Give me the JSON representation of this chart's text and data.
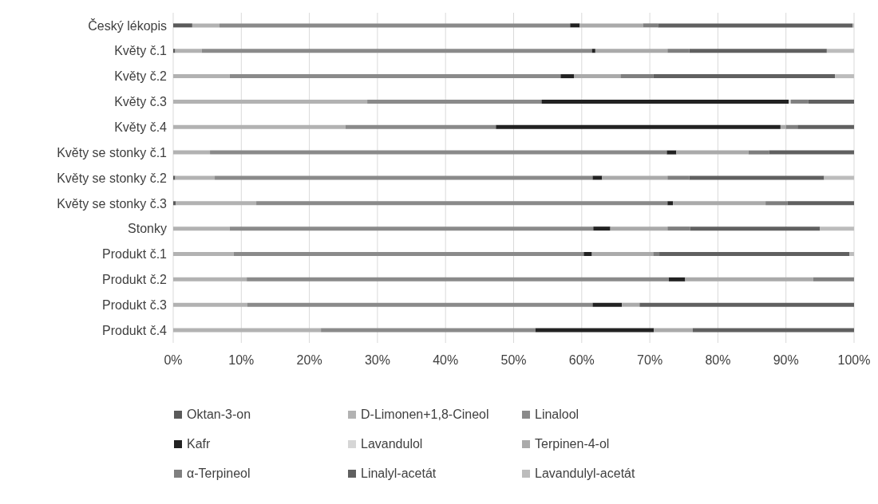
{
  "chart_data": {
    "type": "bar",
    "orientation": "horizontal",
    "stacked": true,
    "categories": [
      "Český lékopis",
      "Květy č.1",
      "Květy č.2",
      "Květy č.3",
      "Květy č.4",
      "Květy se stonky č.1",
      "Květy se stonky č.2",
      "Květy se stonky č.3",
      "Stonky",
      "Produkt č.1",
      "Produkt č.2",
      "Produkt č.3",
      "Produkt č.4"
    ],
    "series": [
      {
        "name": "Oktan-3-on",
        "color": "#5a5a5a",
        "values": [
          2.8,
          0.3,
          0,
          0,
          0,
          0,
          0.3,
          0.4,
          0,
          0,
          0,
          0,
          0
        ]
      },
      {
        "name": "D-Limonen+1,8-Cineol",
        "color": "#b2b2b2",
        "values": [
          4.0,
          3.9,
          8.3,
          28.5,
          25.3,
          5.4,
          5.8,
          11.8,
          8.3,
          8.9,
          10.8,
          10.9,
          21.7
        ]
      },
      {
        "name": "Linalool",
        "color": "#8a8a8a",
        "values": [
          51.5,
          57.3,
          48.6,
          25.6,
          22.1,
          67.1,
          55.5,
          60.4,
          53.4,
          51.4,
          62.0,
          50.7,
          31.5
        ]
      },
      {
        "name": "Kafr",
        "color": "#222222",
        "values": [
          1.4,
          0.5,
          2.0,
          36.3,
          41.8,
          1.4,
          1.4,
          0.8,
          2.5,
          1.2,
          2.4,
          4.3,
          17.4
        ]
      },
      {
        "name": "Lavandulol",
        "color": "#d6d6d6",
        "values": [
          0,
          0,
          0,
          0.3,
          0,
          0,
          0,
          0,
          0,
          0,
          0,
          0,
          0
        ]
      },
      {
        "name": "Terpinen-4-ol",
        "color": "#aaaaaa",
        "values": [
          9.3,
          10.6,
          6.8,
          0,
          0.8,
          10.6,
          9.6,
          13.6,
          8.4,
          9.0,
          18.8,
          2.6,
          5.7
        ]
      },
      {
        "name": "α-Terpineol",
        "color": "#7f7f7f",
        "values": [
          2.2,
          3.2,
          4.8,
          2.6,
          1.7,
          3.0,
          3.2,
          3.2,
          3.3,
          0.9,
          6.0,
          0,
          0
        ]
      },
      {
        "name": "Linalyl-acetát",
        "color": "#606060",
        "values": [
          28.6,
          20.2,
          26.7,
          6.7,
          8.3,
          12.5,
          19.8,
          9.8,
          19.1,
          27.9,
          0,
          31.5,
          23.7
        ]
      },
      {
        "name": "Lavandulyl-acetát",
        "color": "#bcbcbc",
        "values": [
          0.2,
          4.0,
          2.8,
          0,
          0,
          0,
          4.4,
          0,
          5.0,
          0.7,
          0,
          0,
          0
        ]
      }
    ],
    "xlim": [
      0,
      100
    ],
    "xticks": [
      {
        "value": 0,
        "label": "0%"
      },
      {
        "value": 10,
        "label": "10%"
      },
      {
        "value": 20,
        "label": "20%"
      },
      {
        "value": 30,
        "label": "30%"
      },
      {
        "value": 40,
        "label": "40%"
      },
      {
        "value": 50,
        "label": "50%"
      },
      {
        "value": 60,
        "label": "60%"
      },
      {
        "value": 70,
        "label": "70%"
      },
      {
        "value": 80,
        "label": "80%"
      },
      {
        "value": 90,
        "label": "90%"
      },
      {
        "value": 100,
        "label": "100%"
      }
    ],
    "grid": "x",
    "legend": "bottom"
  }
}
